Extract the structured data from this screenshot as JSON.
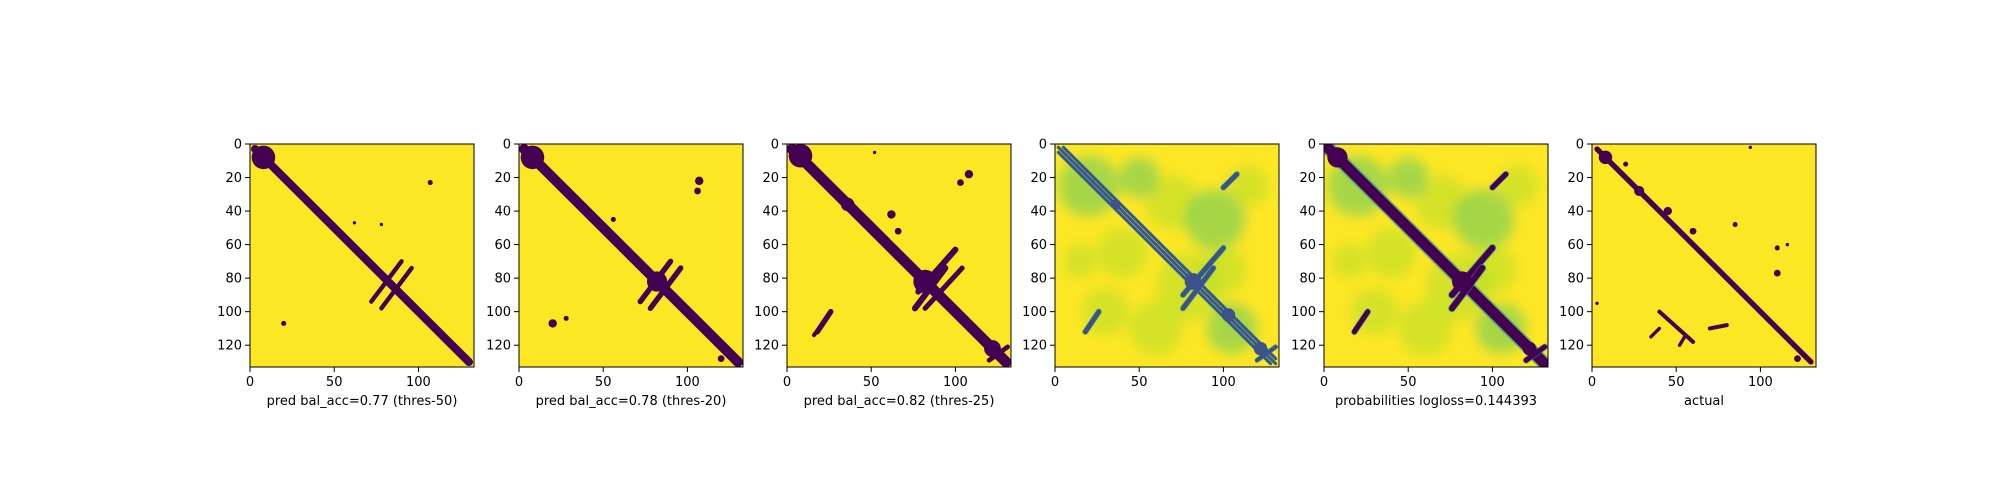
{
  "colors": {
    "background": "#FDE725",
    "contact": "#440154",
    "viridis": [
      "#440154",
      "#3B528B",
      "#21918C",
      "#5EC962",
      "#FDE725"
    ]
  },
  "chart_data": [
    {
      "type": "heatmap",
      "panel": "binary-prediction",
      "xlabel": "pred bal_acc=0.77 (thres-50)",
      "xlim": [
        0,
        133
      ],
      "ylim": [
        133,
        0
      ],
      "xticks": [
        0,
        50,
        100
      ],
      "yticks": [
        0,
        20,
        40,
        60,
        80,
        100,
        120
      ],
      "blobs": [
        [
          8,
          8,
          7
        ],
        [
          20,
          107,
          1.5
        ],
        [
          62,
          47,
          1
        ],
        [
          107,
          23,
          1.5
        ],
        [
          78,
          48,
          1
        ]
      ],
      "bands": [
        {
          "from": [
            3,
            3
          ],
          "to": [
            130,
            130
          ],
          "w": 2.4
        },
        {
          "from": [
            90,
            70
          ],
          "to": [
            72,
            94
          ],
          "w": 1.3
        },
        {
          "from": [
            96,
            74
          ],
          "to": [
            78,
            98
          ],
          "w": 1.3
        }
      ]
    },
    {
      "type": "heatmap",
      "panel": "binary-prediction",
      "xlabel": "pred bal_acc=0.78 (thres-20)",
      "xlim": [
        0,
        133
      ],
      "ylim": [
        133,
        0
      ],
      "xticks": [
        0,
        50,
        100
      ],
      "yticks": [
        0,
        20,
        40,
        60,
        80,
        100,
        120
      ],
      "blobs": [
        [
          8,
          8,
          7
        ],
        [
          82,
          82,
          6
        ],
        [
          107,
          22,
          2.5
        ],
        [
          106,
          28,
          2
        ],
        [
          20,
          107,
          2.5
        ],
        [
          28,
          104,
          1.5
        ],
        [
          56,
          45,
          1.5
        ],
        [
          120,
          128,
          2
        ]
      ],
      "bands": [
        {
          "from": [
            3,
            3
          ],
          "to": [
            130,
            130
          ],
          "w": 3
        },
        {
          "from": [
            90,
            70
          ],
          "to": [
            72,
            94
          ],
          "w": 1.6
        },
        {
          "from": [
            96,
            74
          ],
          "to": [
            78,
            98
          ],
          "w": 1.6
        }
      ]
    },
    {
      "type": "heatmap",
      "panel": "binary-prediction",
      "xlabel": "pred bal_acc=0.82 (thres-25)",
      "xlim": [
        0,
        133
      ],
      "ylim": [
        133,
        0
      ],
      "xticks": [
        0,
        50,
        100
      ],
      "yticks": [
        0,
        20,
        40,
        60,
        80,
        100,
        120
      ],
      "blobs": [
        [
          8,
          7,
          7
        ],
        [
          82,
          82,
          7
        ],
        [
          36,
          36,
          4
        ],
        [
          62,
          42,
          2.5
        ],
        [
          66,
          52,
          2
        ],
        [
          122,
          122,
          5
        ],
        [
          108,
          18,
          2.5
        ],
        [
          103,
          23,
          2
        ],
        [
          52,
          5,
          1
        ]
      ],
      "bands": [
        {
          "from": [
            3,
            3
          ],
          "to": [
            130,
            130
          ],
          "w": 3.2
        },
        {
          "from": [
            100,
            63
          ],
          "to": [
            78,
            88
          ],
          "w": 1.8
        },
        {
          "from": [
            94,
            74
          ],
          "to": [
            76,
            98
          ],
          "w": 1.8
        },
        {
          "from": [
            104,
            74
          ],
          "to": [
            82,
            98
          ],
          "w": 1.5
        },
        {
          "from": [
            26,
            100
          ],
          "to": [
            18,
            112
          ],
          "w": 1.6
        },
        {
          "from": [
            22,
            106
          ],
          "to": [
            16,
            114
          ],
          "w": 1.2
        },
        {
          "from": [
            117,
            117
          ],
          "to": [
            128,
            128
          ],
          "w": 3
        },
        {
          "from": [
            120,
            129
          ],
          "to": [
            131,
            121
          ],
          "w": 1.4
        }
      ]
    },
    {
      "type": "heatmap",
      "panel": "probabilities",
      "xlabel": "",
      "xlim": [
        0,
        133
      ],
      "ylim": [
        133,
        0
      ],
      "xticks": [
        0,
        50,
        100
      ],
      "yticks": [
        0,
        20,
        40,
        60,
        80,
        100,
        120
      ],
      "green_blobs": [
        [
          20,
          25,
          18
        ],
        [
          70,
          35,
          16
        ],
        [
          40,
          65,
          15
        ],
        [
          95,
          45,
          18
        ],
        [
          30,
          100,
          14
        ],
        [
          60,
          110,
          16
        ],
        [
          105,
          110,
          15
        ],
        [
          115,
          25,
          12
        ],
        [
          80,
          85,
          20
        ],
        [
          50,
          20,
          12
        ],
        [
          15,
          70,
          10
        ],
        [
          100,
          75,
          14
        ]
      ],
      "blobs": [
        [
          36,
          36,
          3
        ],
        [
          82,
          82,
          5
        ],
        [
          103,
          102,
          4
        ],
        [
          122,
          122,
          4
        ]
      ],
      "bands": [
        {
          "from": [
            2,
            2
          ],
          "to": [
            131,
            131
          ],
          "w": 0.8
        },
        {
          "from": [
            2,
            5
          ],
          "to": [
            128,
            131
          ],
          "w": 0.8
        },
        {
          "from": [
            5,
            2
          ],
          "to": [
            131,
            128
          ],
          "w": 0.8
        },
        {
          "from": [
            100,
            62
          ],
          "to": [
            76,
            90
          ],
          "w": 1.4
        },
        {
          "from": [
            94,
            74
          ],
          "to": [
            76,
            98
          ],
          "w": 1.4
        },
        {
          "from": [
            26,
            100
          ],
          "to": [
            18,
            112
          ],
          "w": 1.4
        },
        {
          "from": [
            108,
            18
          ],
          "to": [
            100,
            26
          ],
          "w": 1.4
        },
        {
          "from": [
            120,
            129
          ],
          "to": [
            131,
            121
          ],
          "w": 1.2
        }
      ]
    },
    {
      "type": "heatmap",
      "panel": "probabilities",
      "xlabel": "probabilities logloss=0.144393",
      "xlim": [
        0,
        133
      ],
      "ylim": [
        133,
        0
      ],
      "xticks": [
        0,
        50,
        100
      ],
      "yticks": [
        0,
        20,
        40,
        60,
        80,
        100,
        120
      ],
      "green_blobs": [
        [
          20,
          25,
          18
        ],
        [
          70,
          35,
          16
        ],
        [
          40,
          65,
          15
        ],
        [
          95,
          45,
          18
        ],
        [
          30,
          100,
          14
        ],
        [
          60,
          110,
          16
        ],
        [
          105,
          110,
          15
        ],
        [
          115,
          25,
          12
        ],
        [
          80,
          85,
          20
        ],
        [
          50,
          20,
          12
        ],
        [
          15,
          70,
          10
        ],
        [
          100,
          75,
          14
        ]
      ],
      "blobs": [
        [
          8,
          8,
          6
        ],
        [
          36,
          36,
          3
        ],
        [
          82,
          82,
          6
        ],
        [
          122,
          122,
          4
        ]
      ],
      "bands": [
        {
          "from": [
            2,
            2
          ],
          "to": [
            131,
            131
          ],
          "w": 3.2
        },
        {
          "from": [
            100,
            62
          ],
          "to": [
            76,
            90
          ],
          "w": 1.8
        },
        {
          "from": [
            94,
            74
          ],
          "to": [
            76,
            98
          ],
          "w": 1.8
        },
        {
          "from": [
            26,
            100
          ],
          "to": [
            18,
            112
          ],
          "w": 1.5
        },
        {
          "from": [
            108,
            18
          ],
          "to": [
            100,
            26
          ],
          "w": 1.5
        },
        {
          "from": [
            120,
            129
          ],
          "to": [
            131,
            121
          ],
          "w": 1.5
        }
      ]
    },
    {
      "type": "heatmap",
      "panel": "actual",
      "xlabel": "actual",
      "xlim": [
        0,
        133
      ],
      "ylim": [
        133,
        0
      ],
      "xticks": [
        0,
        50,
        100
      ],
      "yticks": [
        0,
        20,
        40,
        60,
        80,
        100,
        120
      ],
      "blobs": [
        [
          8,
          8,
          4
        ],
        [
          28,
          28,
          3
        ],
        [
          45,
          40,
          2.5
        ],
        [
          60,
          52,
          2
        ],
        [
          94,
          2,
          1
        ],
        [
          20,
          12,
          1.5
        ],
        [
          110,
          62,
          1.5
        ],
        [
          116,
          60,
          1
        ],
        [
          110,
          77,
          2
        ],
        [
          92,
          92,
          1.5
        ],
        [
          122,
          128,
          2
        ],
        [
          3,
          95,
          1
        ],
        [
          85,
          48,
          1.5
        ]
      ],
      "bands": [
        {
          "from": [
            3,
            3
          ],
          "to": [
            130,
            130
          ],
          "w": 1.6
        },
        {
          "from": [
            40,
            100
          ],
          "to": [
            60,
            118
          ],
          "w": 1.2
        },
        {
          "from": [
            70,
            110
          ],
          "to": [
            80,
            108
          ],
          "w": 1.2
        },
        {
          "from": [
            35,
            115
          ],
          "to": [
            40,
            110
          ],
          "w": 1
        },
        {
          "from": [
            55,
            115
          ],
          "to": [
            52,
            120
          ],
          "w": 1
        }
      ]
    }
  ]
}
